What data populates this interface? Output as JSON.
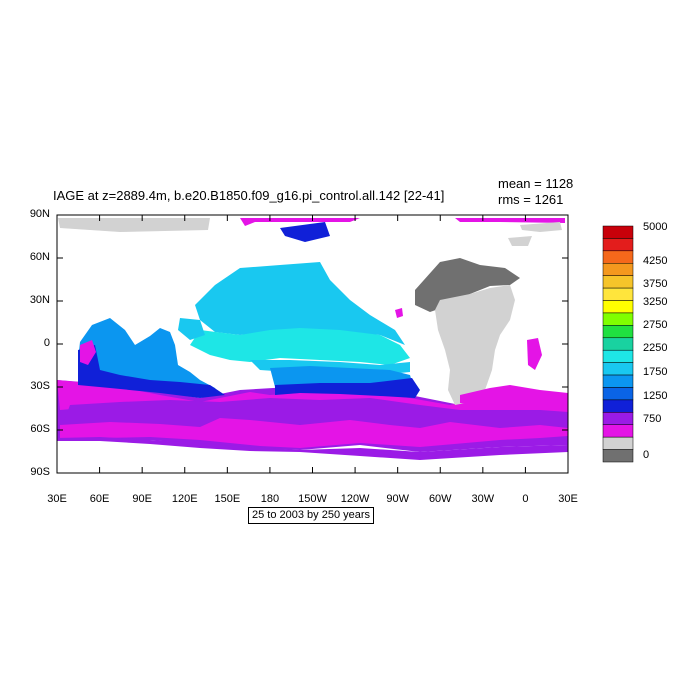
{
  "title": "IAGE at z=2889.4m, b.e20.B1850.f09_g16.pi_control.all.142 [22-41]",
  "stats": {
    "mean": "mean = 1128",
    "rms": "rms = 1261"
  },
  "range_note": "25 to 2003 by 250 years",
  "axes": {
    "y_ticks": [
      "90N",
      "60N",
      "30N",
      "0",
      "30S",
      "60S",
      "90S"
    ],
    "x_ticks": [
      "30E",
      "60E",
      "90E",
      "120E",
      "150E",
      "180",
      "150W",
      "120W",
      "90W",
      "60W",
      "30W",
      "0",
      "30E"
    ]
  },
  "colorbar": {
    "labels": [
      "5000",
      "4250",
      "3750",
      "3250",
      "2750",
      "2250",
      "1750",
      "1250",
      "750",
      "0"
    ],
    "colors": [
      "#c8000a",
      "#e31d1c",
      "#f5681b",
      "#f4981e",
      "#f6c42a",
      "#ffe53c",
      "#ffff00",
      "#80ff00",
      "#20e040",
      "#19d2a0",
      "#1ee6e6",
      "#19c8f0",
      "#0b96f0",
      "#0a64e6",
      "#1020d8",
      "#9b1be6",
      "#e414e6",
      "#d2d2d2",
      "#707070"
    ]
  },
  "map_colors": {
    "gray_dark": "#707070",
    "gray_light": "#d2d2d2",
    "magenta": "#e414e6",
    "purple": "#9b1be6",
    "blue": "#1020d8",
    "mid_blue": "#0a64e6",
    "azure": "#0b96f0",
    "sky": "#19c8f0",
    "cyan": "#1ee6e6"
  }
}
